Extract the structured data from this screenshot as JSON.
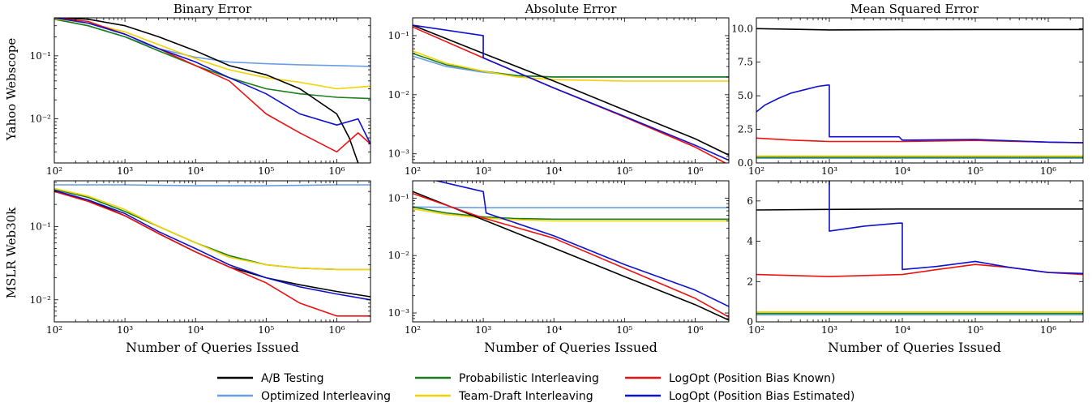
{
  "colors": {
    "ab": "#000000",
    "optimized": "#6a9ee3",
    "probabilistic": "#1a7f1a",
    "team_draft": "#f2d200",
    "logopt_known": "#ee1111",
    "logopt_estimated": "#1010d0"
  },
  "legend": [
    {
      "key": "ab",
      "label": "A/B Testing"
    },
    {
      "key": "optimized",
      "label": "Optimized Interleaving"
    },
    {
      "key": "probabilistic",
      "label": "Probabilistic Interleaving"
    },
    {
      "key": "team_draft",
      "label": "Team-Draft Interleaving"
    },
    {
      "key": "logopt_known",
      "label": "LogOpt (Position Bias Known)"
    },
    {
      "key": "logopt_estimated",
      "label": "LogOpt (Position Bias Estimated)"
    }
  ],
  "column_titles": [
    "Binary Error",
    "Absolute Error",
    "Mean Squared Error"
  ],
  "row_labels": [
    "Yahoo Webscope",
    "MSLR Web30k"
  ],
  "xlabel": "Number of Queries Issued",
  "chart_data": [
    {
      "id": "yahoo-binary",
      "type": "line",
      "title": "Binary Error",
      "xlabel": "",
      "ylabel": "Yahoo Webscope",
      "xscale": "log",
      "yscale": "log",
      "xlim": [
        100,
        3000000
      ],
      "ylim": [
        0.002,
        0.4
      ],
      "xticks": [
        100,
        1000,
        10000,
        100000,
        1000000
      ],
      "yticks": [
        0.01,
        0.1
      ],
      "ytick_side": "left",
      "series": [
        {
          "key": "optimized",
          "name": "Optimized Interleaving",
          "x": [
            100,
            300,
            1000,
            3000,
            10000,
            30000,
            100000,
            300000,
            1000000,
            3000000
          ],
          "y": [
            0.38,
            0.3,
            0.2,
            0.13,
            0.095,
            0.08,
            0.075,
            0.072,
            0.07,
            0.068
          ]
        },
        {
          "key": "probabilistic",
          "name": "Probabilistic Interleaving",
          "x": [
            100,
            300,
            1000,
            3000,
            10000,
            30000,
            100000,
            300000,
            1000000,
            3000000
          ],
          "y": [
            0.38,
            0.3,
            0.2,
            0.12,
            0.07,
            0.045,
            0.03,
            0.025,
            0.022,
            0.021
          ]
        },
        {
          "key": "team_draft",
          "name": "Team-Draft Interleaving",
          "x": [
            100,
            300,
            1000,
            3000,
            10000,
            30000,
            100000,
            300000,
            1000000,
            3000000
          ],
          "y": [
            0.39,
            0.33,
            0.24,
            0.15,
            0.09,
            0.06,
            0.045,
            0.038,
            0.03,
            0.033
          ]
        },
        {
          "key": "ab",
          "name": "A/B Testing",
          "x": [
            100,
            300,
            1000,
            3000,
            10000,
            30000,
            100000,
            300000,
            1000000,
            1500000,
            2000000
          ],
          "y": [
            0.4,
            0.38,
            0.3,
            0.2,
            0.12,
            0.07,
            0.05,
            0.03,
            0.012,
            0.005,
            0.002
          ]
        },
        {
          "key": "logopt_known",
          "name": "LogOpt (Position Bias Known)",
          "x": [
            100,
            300,
            1000,
            3000,
            10000,
            30000,
            100000,
            300000,
            1000000,
            2000000,
            3000000
          ],
          "y": [
            0.4,
            0.35,
            0.22,
            0.13,
            0.07,
            0.04,
            0.012,
            0.006,
            0.003,
            0.006,
            0.004
          ]
        },
        {
          "key": "logopt_estimated",
          "name": "LogOpt (Position Bias Estimated)",
          "x": [
            100,
            300,
            1000,
            3000,
            10000,
            30000,
            100000,
            300000,
            1000000,
            2000000,
            3000000
          ],
          "y": [
            0.4,
            0.33,
            0.22,
            0.13,
            0.08,
            0.045,
            0.025,
            0.012,
            0.008,
            0.01,
            0.004
          ]
        }
      ]
    },
    {
      "id": "yahoo-absolute",
      "type": "line",
      "title": "Absolute Error",
      "xlabel": "",
      "ylabel": "",
      "xscale": "log",
      "yscale": "log",
      "xlim": [
        100,
        3000000
      ],
      "ylim": [
        0.0007,
        0.2
      ],
      "xticks": [
        100,
        1000,
        10000,
        100000,
        1000000
      ],
      "yticks": [
        0.001,
        0.01,
        0.1
      ],
      "ytick_side": "left",
      "series": [
        {
          "key": "optimized",
          "name": "Optimized Interleaving",
          "x": [
            100,
            300,
            1000,
            3000,
            10000,
            100000,
            1000000,
            3000000
          ],
          "y": [
            0.045,
            0.03,
            0.024,
            0.021,
            0.02,
            0.02,
            0.02,
            0.02
          ]
        },
        {
          "key": "probabilistic",
          "name": "Probabilistic Interleaving",
          "x": [
            100,
            300,
            1000,
            3000,
            10000,
            100000,
            1000000,
            3000000
          ],
          "y": [
            0.05,
            0.032,
            0.025,
            0.021,
            0.02,
            0.02,
            0.02,
            0.02
          ]
        },
        {
          "key": "team_draft",
          "name": "Team-Draft Interleaving",
          "x": [
            100,
            300,
            1000,
            3000,
            10000,
            100000,
            1000000,
            3000000
          ],
          "y": [
            0.055,
            0.034,
            0.025,
            0.02,
            0.018,
            0.017,
            0.017,
            0.017
          ]
        },
        {
          "key": "ab",
          "name": "A/B Testing",
          "x": [
            100,
            1000,
            10000,
            100000,
            1000000,
            3000000
          ],
          "y": [
            0.15,
            0.05,
            0.017,
            0.0055,
            0.0018,
            0.00095
          ]
        },
        {
          "key": "logopt_known",
          "name": "LogOpt (Position Bias Known)",
          "x": [
            100,
            1000,
            10000,
            100000,
            1000000,
            3000000
          ],
          "y": [
            0.14,
            0.042,
            0.013,
            0.0042,
            0.0013,
            0.00065
          ]
        },
        {
          "key": "logopt_estimated",
          "name": "LogOpt (Position Bias Estimated)",
          "x": [
            100,
            1000,
            1000,
            10000,
            100000,
            1000000,
            3000000
          ],
          "y": [
            0.15,
            0.1,
            0.042,
            0.013,
            0.0043,
            0.0014,
            0.00078
          ]
        }
      ]
    },
    {
      "id": "yahoo-mse",
      "type": "line",
      "title": "Mean Squared Error",
      "xlabel": "",
      "ylabel": "",
      "xscale": "log",
      "yscale": "linear",
      "xlim": [
        100,
        3000000
      ],
      "ylim": [
        0,
        10.8
      ],
      "xticks": [
        100,
        1000,
        10000,
        100000,
        1000000
      ],
      "yticks": [
        0.0,
        2.5,
        5.0,
        7.5,
        10.0
      ],
      "ytick_labels": [
        "0.0",
        "2.5",
        "5.0",
        "7.5",
        "10.0"
      ],
      "ytick_side": "left",
      "series": [
        {
          "key": "optimized",
          "name": "Optimized Interleaving",
          "x": [
            100,
            3000000
          ],
          "y": [
            0.35,
            0.35
          ]
        },
        {
          "key": "probabilistic",
          "name": "Probabilistic Interleaving",
          "x": [
            100,
            3000000
          ],
          "y": [
            0.42,
            0.42
          ]
        },
        {
          "key": "team_draft",
          "name": "Team-Draft Interleaving",
          "x": [
            100,
            3000000
          ],
          "y": [
            0.52,
            0.52
          ]
        },
        {
          "key": "ab",
          "name": "A/B Testing",
          "x": [
            100,
            300,
            1000,
            10000,
            100000,
            1000000,
            3000000
          ],
          "y": [
            10.0,
            9.95,
            9.9,
            9.92,
            9.93,
            9.93,
            9.93
          ]
        },
        {
          "key": "logopt_known",
          "name": "LogOpt (Position Bias Known)",
          "x": [
            100,
            300,
            1000,
            10000,
            100000,
            1000000,
            3000000
          ],
          "y": [
            1.85,
            1.7,
            1.6,
            1.6,
            1.68,
            1.55,
            1.5
          ]
        },
        {
          "key": "logopt_estimated",
          "name": "LogOpt (Position Bias Estimated)",
          "x": [
            100,
            130,
            200,
            300,
            500,
            700,
            950,
            1000,
            1000,
            9000,
            10000,
            100000,
            1000000,
            3000000
          ],
          "y": [
            3.8,
            4.3,
            4.8,
            5.2,
            5.5,
            5.7,
            5.8,
            5.8,
            1.95,
            1.95,
            1.7,
            1.75,
            1.55,
            1.5
          ]
        }
      ]
    },
    {
      "id": "mslr-binary",
      "type": "line",
      "title": "",
      "xlabel": "Number of Queries Issued",
      "ylabel": "MSLR Web30k",
      "xscale": "log",
      "yscale": "log",
      "xlim": [
        100,
        3000000
      ],
      "ylim": [
        0.005,
        0.42
      ],
      "xticks": [
        100,
        1000,
        10000,
        100000,
        1000000
      ],
      "yticks": [
        0.01,
        0.1
      ],
      "ytick_side": "left",
      "series": [
        {
          "key": "optimized",
          "name": "Optimized Interleaving",
          "x": [
            100,
            1000,
            10000,
            100000,
            1000000,
            3000000
          ],
          "y": [
            0.37,
            0.37,
            0.36,
            0.36,
            0.37,
            0.37
          ]
        },
        {
          "key": "probabilistic",
          "name": "Probabilistic Interleaving",
          "x": [
            100,
            300,
            1000,
            3000,
            10000,
            30000,
            100000,
            300000,
            1000000,
            3000000
          ],
          "y": [
            0.32,
            0.25,
            0.16,
            0.1,
            0.06,
            0.04,
            0.03,
            0.027,
            0.026,
            0.026
          ]
        },
        {
          "key": "team_draft",
          "name": "Team-Draft Interleaving",
          "x": [
            100,
            300,
            1000,
            3000,
            10000,
            30000,
            100000,
            300000,
            1000000,
            3000000
          ],
          "y": [
            0.33,
            0.26,
            0.17,
            0.1,
            0.06,
            0.038,
            0.03,
            0.027,
            0.026,
            0.026
          ]
        },
        {
          "key": "ab",
          "name": "A/B Testing",
          "x": [
            100,
            300,
            1000,
            3000,
            10000,
            30000,
            100000,
            300000,
            1000000,
            3000000
          ],
          "y": [
            0.3,
            0.23,
            0.14,
            0.08,
            0.045,
            0.028,
            0.02,
            0.016,
            0.013,
            0.011
          ]
        },
        {
          "key": "logopt_known",
          "name": "LogOpt (Position Bias Known)",
          "x": [
            100,
            300,
            1000,
            3000,
            10000,
            30000,
            100000,
            300000,
            1000000,
            3000000
          ],
          "y": [
            0.3,
            0.22,
            0.14,
            0.08,
            0.045,
            0.028,
            0.017,
            0.009,
            0.006,
            0.006
          ]
        },
        {
          "key": "logopt_estimated",
          "name": "LogOpt (Position Bias Estimated)",
          "x": [
            100,
            300,
            1000,
            3000,
            10000,
            30000,
            100000,
            300000,
            1000000,
            3000000
          ],
          "y": [
            0.31,
            0.23,
            0.15,
            0.085,
            0.05,
            0.03,
            0.02,
            0.015,
            0.012,
            0.01
          ]
        }
      ]
    },
    {
      "id": "mslr-absolute",
      "type": "line",
      "title": "",
      "xlabel": "Number of Queries Issued",
      "ylabel": "",
      "xscale": "log",
      "yscale": "log",
      "xlim": [
        100,
        3000000
      ],
      "ylim": [
        0.0007,
        0.2
      ],
      "xticks": [
        100,
        1000,
        10000,
        100000,
        1000000
      ],
      "yticks": [
        0.001,
        0.01,
        0.1
      ],
      "ytick_side": "left",
      "series": [
        {
          "key": "optimized",
          "name": "Optimized Interleaving",
          "x": [
            100,
            1000,
            10000,
            100000,
            1000000,
            3000000
          ],
          "y": [
            0.07,
            0.068,
            0.068,
            0.068,
            0.068,
            0.068
          ]
        },
        {
          "key": "probabilistic",
          "name": "Probabilistic Interleaving",
          "x": [
            100,
            300,
            1000,
            3000,
            10000,
            100000,
            1000000,
            3000000
          ],
          "y": [
            0.07,
            0.055,
            0.047,
            0.044,
            0.043,
            0.043,
            0.043,
            0.043
          ]
        },
        {
          "key": "team_draft",
          "name": "Team-Draft Interleaving",
          "x": [
            100,
            300,
            1000,
            3000,
            10000,
            100000,
            1000000,
            3000000
          ],
          "y": [
            0.065,
            0.052,
            0.045,
            0.042,
            0.04,
            0.04,
            0.04,
            0.04
          ]
        },
        {
          "key": "ab",
          "name": "A/B Testing",
          "x": [
            100,
            1000,
            10000,
            100000,
            1000000,
            3000000
          ],
          "y": [
            0.13,
            0.042,
            0.0135,
            0.0043,
            0.0014,
            0.00075
          ]
        },
        {
          "key": "logopt_known",
          "name": "LogOpt (Position Bias Known)",
          "x": [
            100,
            1000,
            10000,
            100000,
            1000000,
            3000000
          ],
          "y": [
            0.12,
            0.045,
            0.02,
            0.006,
            0.0018,
            0.00085
          ]
        },
        {
          "key": "logopt_estimated",
          "name": "LogOpt (Position Bias Estimated)",
          "x": [
            100,
            1000,
            1100,
            10000,
            100000,
            1000000,
            3000000
          ],
          "y": [
            0.25,
            0.13,
            0.055,
            0.022,
            0.007,
            0.0025,
            0.0013
          ]
        }
      ]
    },
    {
      "id": "mslr-mse",
      "type": "line",
      "title": "",
      "xlabel": "Number of Queries Issued",
      "ylabel": "",
      "xscale": "log",
      "yscale": "linear",
      "xlim": [
        100,
        3000000
      ],
      "ylim": [
        0,
        7
      ],
      "xticks": [
        100,
        1000,
        10000,
        100000,
        1000000
      ],
      "yticks": [
        0,
        2,
        4,
        6
      ],
      "ytick_labels": [
        "0",
        "2",
        "4",
        "6"
      ],
      "ytick_side": "left",
      "series": [
        {
          "key": "optimized",
          "name": "Optimized Interleaving",
          "x": [
            100,
            3000000
          ],
          "y": [
            0.35,
            0.35
          ]
        },
        {
          "key": "probabilistic",
          "name": "Probabilistic Interleaving",
          "x": [
            100,
            3000000
          ],
          "y": [
            0.42,
            0.42
          ]
        },
        {
          "key": "team_draft",
          "name": "Team-Draft Interleaving",
          "x": [
            100,
            3000000
          ],
          "y": [
            0.5,
            0.5
          ]
        },
        {
          "key": "ab",
          "name": "A/B Testing",
          "x": [
            100,
            1000,
            10000,
            100000,
            1000000,
            3000000
          ],
          "y": [
            5.55,
            5.58,
            5.6,
            5.6,
            5.6,
            5.6
          ]
        },
        {
          "key": "logopt_known",
          "name": "LogOpt (Position Bias Known)",
          "x": [
            100,
            1000,
            10000,
            30000,
            100000,
            300000,
            1000000,
            3000000
          ],
          "y": [
            2.35,
            2.25,
            2.35,
            2.6,
            2.85,
            2.7,
            2.45,
            2.35
          ]
        },
        {
          "key": "logopt_estimated",
          "name": "LogOpt (Position Bias Estimated)",
          "x": [
            980,
            1000,
            1000,
            3000,
            9000,
            10000,
            10000,
            30000,
            100000,
            300000,
            1000000,
            3000000
          ],
          "y": [
            7.0,
            7.0,
            4.5,
            4.75,
            4.9,
            4.9,
            2.6,
            2.75,
            3.0,
            2.7,
            2.45,
            2.4
          ]
        }
      ]
    }
  ]
}
